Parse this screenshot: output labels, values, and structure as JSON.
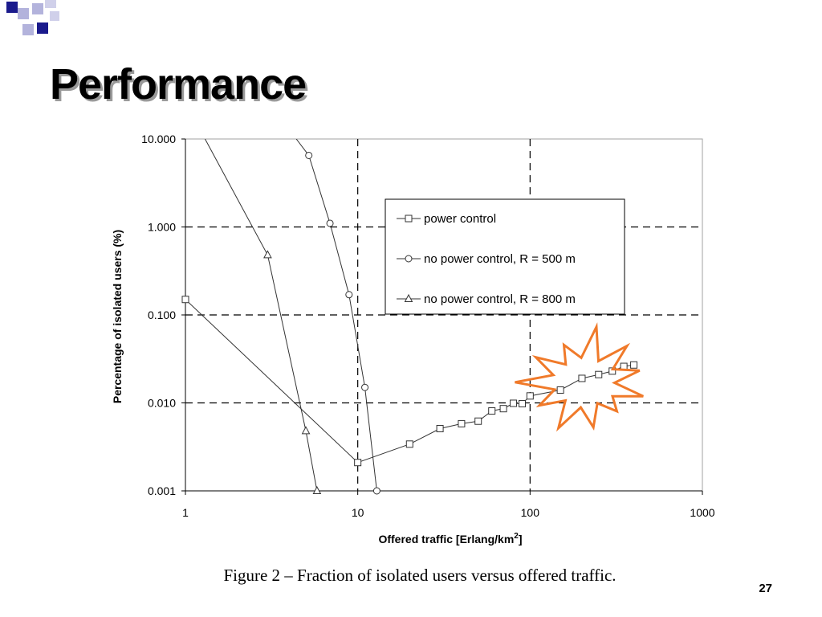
{
  "slide": {
    "title": "Performance",
    "caption": "Figure 2 – Fraction of isolated users versus offered traffic.",
    "page_number": "27"
  },
  "colors": {
    "deco_dark": "#1a1a8c",
    "deco_light": "#b3b3dc",
    "burst_stroke": "#f07a2a",
    "grid_dash": "#000000",
    "series_line": "#333333"
  },
  "chart_data": {
    "type": "line",
    "xscale": "log",
    "yscale": "log",
    "xlim": [
      1,
      1000
    ],
    "ylim": [
      0.001,
      10
    ],
    "xlabel": "Offered traffic [Erlang/km",
    "xlabel_sup": "2",
    "xlabel_end": "]",
    "ylabel": "Percentage of isolated users (%)",
    "xticks": [
      {
        "value": 1,
        "label": "1"
      },
      {
        "value": 10,
        "label": "10"
      },
      {
        "value": 100,
        "label": "100"
      },
      {
        "value": 1000,
        "label": "1000"
      }
    ],
    "yticks": [
      {
        "value": 10,
        "label": "10.000"
      },
      {
        "value": 1,
        "label": "1.000"
      },
      {
        "value": 0.1,
        "label": "0.100"
      },
      {
        "value": 0.01,
        "label": "0.010"
      },
      {
        "value": 0.001,
        "label": "0.001"
      }
    ],
    "grid": "dashed at decades",
    "legend_position": "top-right",
    "series": [
      {
        "name": "power control",
        "marker": "square",
        "x": [
          1,
          10,
          20,
          30,
          40,
          50,
          60,
          70,
          80,
          90,
          100,
          150,
          200,
          250,
          300,
          350,
          400
        ],
        "y": [
          0.15,
          0.0021,
          0.0034,
          0.0051,
          0.0058,
          0.0062,
          0.0081,
          0.0086,
          0.0099,
          0.0098,
          0.012,
          0.014,
          0.019,
          0.021,
          0.023,
          0.026,
          0.027
        ]
      },
      {
        "name": "no power control, R = 500 m",
        "marker": "circle",
        "x": [
          4.4,
          5.2,
          6.9,
          8.9,
          11,
          12.9
        ],
        "y": [
          10,
          6.5,
          1.1,
          0.17,
          0.015,
          0.001
        ]
      },
      {
        "name": "no power control, R = 800 m",
        "marker": "triangle",
        "x": [
          1.3,
          3,
          5,
          5.8
        ],
        "y": [
          10,
          0.48,
          0.0048,
          0.001
        ]
      }
    ],
    "annotations": [
      {
        "type": "burst",
        "stroke": "#f07a2a",
        "around": "power control, x 100-400"
      }
    ]
  }
}
